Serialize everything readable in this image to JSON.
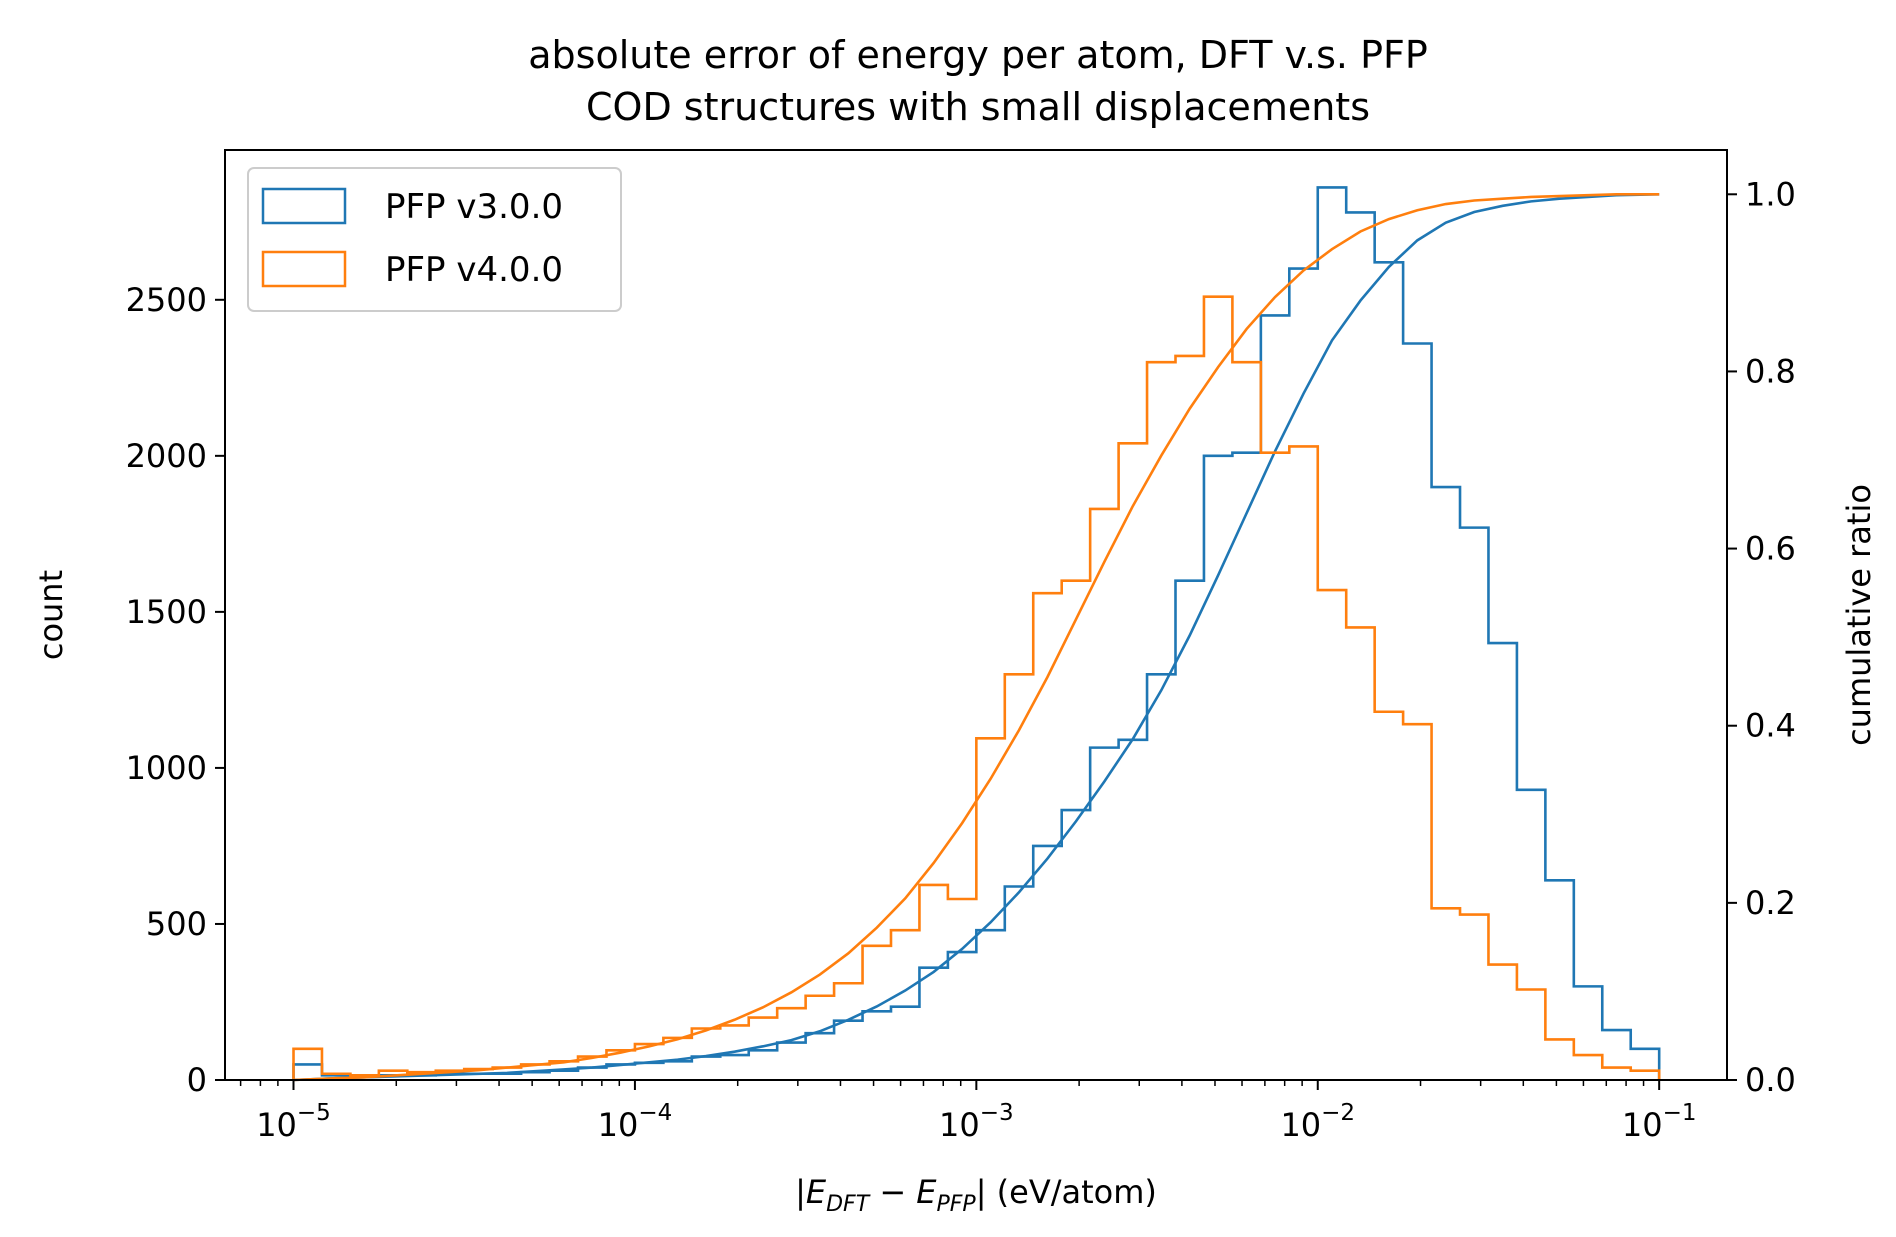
{
  "chart_data": {
    "type": "histogram",
    "title": "absolute error of energy per atom, DFT v.s. PFP",
    "subtitle": "COD structures with small displacements",
    "xlabel": {
      "prefix": "|",
      "e1": "E",
      "sub1": "DFT",
      "minus": " − ",
      "e2": "E",
      "sub2": "PFP",
      "suffix": "| (eV/atom)"
    },
    "ylabel": "count",
    "y2label": "cumulative ratio",
    "xscale": "log",
    "xlim": [
      6.3e-06,
      0.158
    ],
    "ylim": [
      0,
      2980
    ],
    "y2lim": [
      0,
      1.05
    ],
    "xticks": [
      {
        "value": 1e-05,
        "base": "10",
        "exp": "−5"
      },
      {
        "value": 0.0001,
        "base": "10",
        "exp": "−4"
      },
      {
        "value": 0.001,
        "base": "10",
        "exp": "−3"
      },
      {
        "value": 0.01,
        "base": "10",
        "exp": "−2"
      },
      {
        "value": 0.1,
        "base": "10",
        "exp": "−1"
      }
    ],
    "yticks": [
      "0",
      "500",
      "1000",
      "1500",
      "2000",
      "2500"
    ],
    "y2ticks": [
      "0.0",
      "0.2",
      "0.4",
      "0.6",
      "0.8",
      "1.0"
    ],
    "grid": false,
    "legend_position": "upper-left",
    "bins": {
      "start": 1e-05,
      "end": 0.1,
      "count": 48
    },
    "series": [
      {
        "name": "PFP v3.0.0",
        "color": "#1f77b4",
        "counts": [
          50,
          15,
          15,
          15,
          15,
          20,
          20,
          20,
          25,
          30,
          40,
          50,
          55,
          60,
          75,
          80,
          95,
          120,
          150,
          190,
          220,
          235,
          360,
          410,
          480,
          620,
          750,
          865,
          1065,
          1090,
          1300,
          1600,
          2000,
          2010,
          2450,
          2600,
          2860,
          2780,
          2620,
          2360,
          1900,
          1770,
          1400,
          930,
          640,
          300,
          160,
          100
        ],
        "cumulative": [
          0.0,
          0.002,
          0.003,
          0.004,
          0.005,
          0.006,
          0.007,
          0.008,
          0.01,
          0.012,
          0.014,
          0.017,
          0.02,
          0.023,
          0.027,
          0.032,
          0.038,
          0.045,
          0.055,
          0.068,
          0.083,
          0.101,
          0.122,
          0.148,
          0.178,
          0.212,
          0.25,
          0.292,
          0.337,
          0.385,
          0.44,
          0.502,
          0.57,
          0.64,
          0.71,
          0.775,
          0.835,
          0.88,
          0.918,
          0.948,
          0.968,
          0.98,
          0.987,
          0.992,
          0.995,
          0.997,
          0.999,
          1.0
        ]
      },
      {
        "name": "PFP v4.0.0",
        "color": "#ff7f0e",
        "counts": [
          100,
          20,
          15,
          30,
          25,
          30,
          35,
          40,
          50,
          60,
          75,
          95,
          115,
          135,
          165,
          175,
          200,
          230,
          270,
          310,
          430,
          480,
          625,
          580,
          1095,
          1300,
          1560,
          1600,
          1830,
          2040,
          2300,
          2320,
          2510,
          2300,
          2010,
          2030,
          1570,
          1450,
          1180,
          1140,
          550,
          530,
          370,
          290,
          130,
          80,
          40,
          30
        ],
        "cumulative": [
          0.0,
          0.002,
          0.003,
          0.005,
          0.007,
          0.009,
          0.011,
          0.014,
          0.017,
          0.02,
          0.025,
          0.031,
          0.038,
          0.046,
          0.056,
          0.068,
          0.082,
          0.099,
          0.119,
          0.143,
          0.172,
          0.205,
          0.245,
          0.29,
          0.34,
          0.395,
          0.455,
          0.52,
          0.585,
          0.648,
          0.705,
          0.758,
          0.805,
          0.848,
          0.884,
          0.914,
          0.938,
          0.958,
          0.972,
          0.982,
          0.989,
          0.993,
          0.995,
          0.997,
          0.998,
          0.999,
          1.0,
          1.0
        ]
      }
    ]
  }
}
